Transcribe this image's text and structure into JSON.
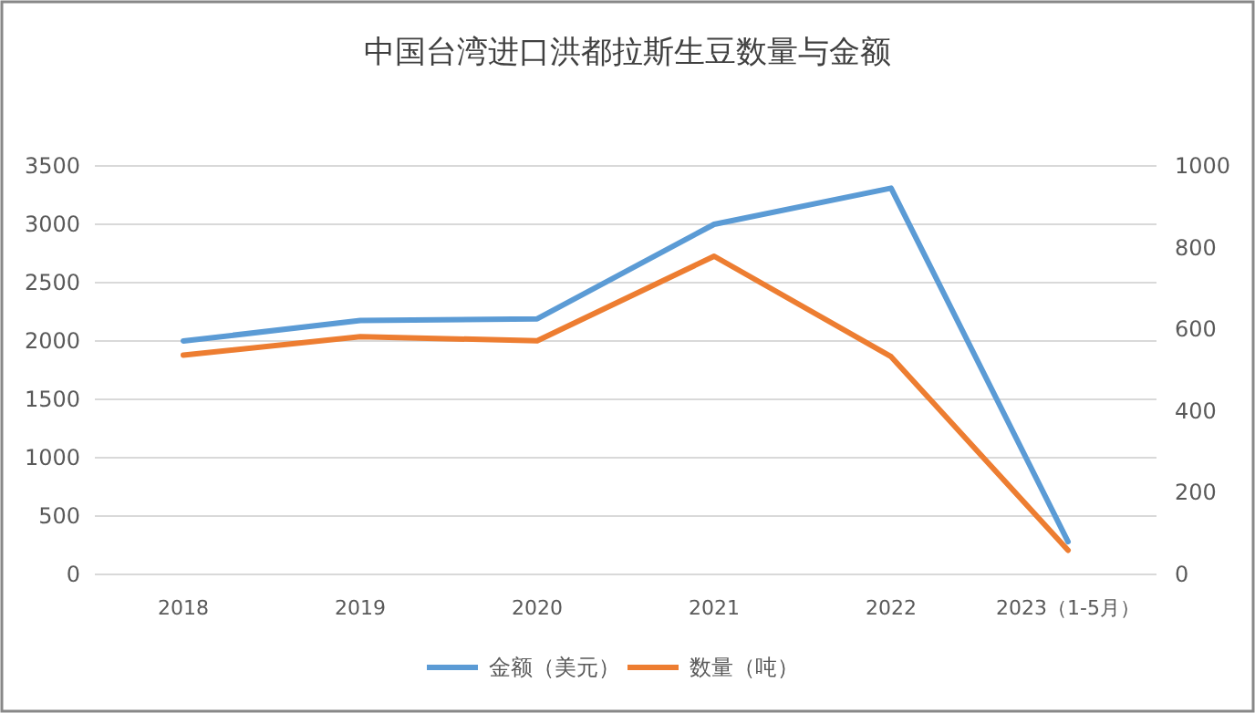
{
  "chart_data": {
    "type": "line",
    "title": "中国台湾进口洪都拉斯生豆数量与金额",
    "categories": [
      "2018",
      "2019",
      "2020",
      "2021",
      "2022",
      "2023（1-5月）"
    ],
    "series": [
      {
        "name": "金额（美元）",
        "color": "#5b9bd5",
        "values": [
          2000,
          2175,
          2190,
          3000,
          3310,
          280
        ]
      },
      {
        "name": "数量（吨）",
        "color": "#ed7d31",
        "axis": "y2",
        "values": [
          537,
          582,
          572,
          779,
          533,
          59
        ]
      }
    ],
    "ylim": [
      0,
      3500
    ],
    "yticks": [
      0,
      500,
      1000,
      1500,
      2000,
      2500,
      3000,
      3500
    ],
    "y2lim": [
      0,
      1000
    ],
    "y2ticks": [
      0,
      200,
      400,
      600,
      800,
      1000
    ],
    "grid": "y",
    "legend": "bottom",
    "marker": "none",
    "line_style": "solid"
  }
}
